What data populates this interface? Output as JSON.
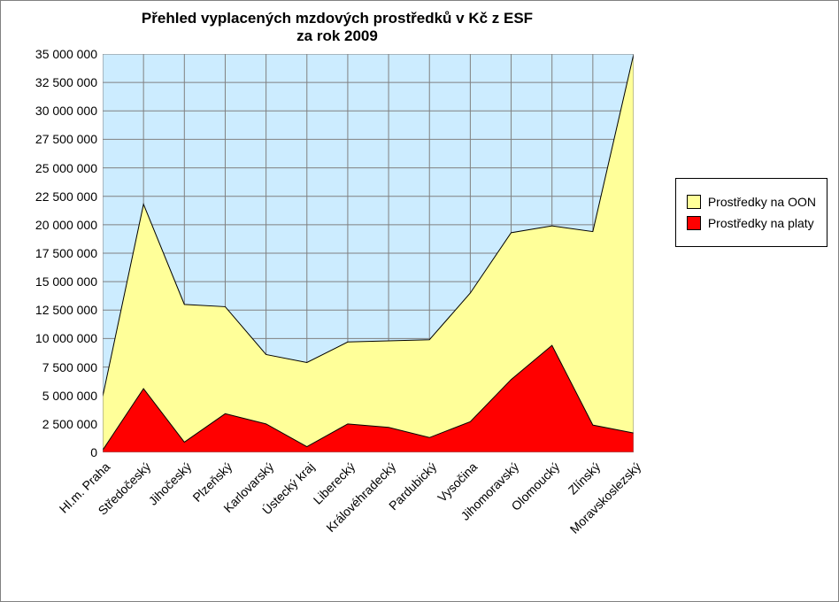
{
  "chart": {
    "type": "area-stacked",
    "title_line1": "Přehled vyplacených mzdových prostředků v Kč z ESF",
    "title_line2": "za rok 2009",
    "title_fontsize": 17,
    "label_fontsize": 14,
    "tick_fontsize": 14,
    "background_color": "#ffffff",
    "plot_background_color": "#ccecff",
    "grid_color": "#808080",
    "border_color": "#808080",
    "text_color": "#000000",
    "ylim": [
      0,
      35000000
    ],
    "ytick_step": 2500000,
    "yticks": [
      0,
      2500000,
      5000000,
      7500000,
      10000000,
      12500000,
      15000000,
      17500000,
      20000000,
      22500000,
      25000000,
      27500000,
      30000000,
      32500000,
      35000000
    ],
    "ytick_labels": [
      "0",
      "2 500 000",
      "5 000 000",
      "7 500 000",
      "10 000 000",
      "12 500 000",
      "15 000 000",
      "17 500 000",
      "20 000 000",
      "22 500 000",
      "25 000 000",
      "27 500 000",
      "30 000 000",
      "32 500 000",
      "35 000 000"
    ],
    "categories": [
      "Hl.m. Praha",
      "Středočeský",
      "Jihočeský",
      "Plzeňský",
      "Karlovarský",
      "Ústecký kraj",
      "Liberecký",
      "Královéhradecký",
      "Pardubický",
      "Vysočina",
      "Jihomoravský",
      "Olomoucký",
      "Zlínský",
      "Moravskoslezský"
    ],
    "series": [
      {
        "name": "Prostředky na platy",
        "color": "#ff0000",
        "values": [
          200000,
          5600000,
          900000,
          3400000,
          2500000,
          500000,
          2500000,
          2200000,
          1300000,
          2700000,
          6400000,
          9400000,
          2400000,
          1700000
        ]
      },
      {
        "name": "Prostředky na OON",
        "color": "#ffff99",
        "values": [
          4900000,
          21800000,
          13000000,
          12800000,
          8600000,
          7900000,
          9700000,
          9800000,
          9900000,
          14000000,
          19300000,
          19900000,
          19400000,
          35000000
        ]
      }
    ],
    "legend": {
      "items": [
        {
          "label": "Prostředky na OON",
          "color": "#ffff99"
        },
        {
          "label": "Prostředky na platy",
          "color": "#ff0000"
        }
      ]
    },
    "series_stroke_color": "#000000",
    "series_stroke_width": 1,
    "x_label_rotation_deg": -45
  }
}
